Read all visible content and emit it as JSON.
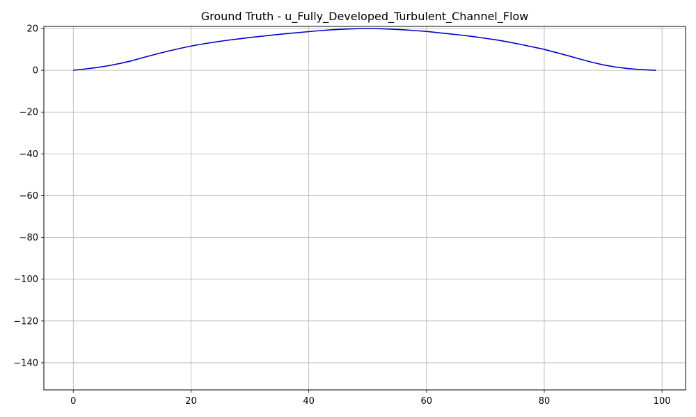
{
  "chart_data": {
    "type": "line",
    "title": "Ground Truth - u_Fully_Developed_Turbulent_Channel_Flow",
    "xlabel": "",
    "ylabel": "",
    "xlim": [
      -5,
      104
    ],
    "ylim": [
      -153,
      21
    ],
    "xticks": [
      0,
      20,
      40,
      60,
      80,
      100
    ],
    "yticks": [
      20,
      0,
      -20,
      -40,
      -60,
      -80,
      -100,
      -120,
      -140
    ],
    "xtick_labels": [
      "0",
      "20",
      "40",
      "60",
      "80",
      "100"
    ],
    "ytick_labels": [
      "20",
      "0",
      "−20",
      "−40",
      "−60",
      "−80",
      "−100",
      "−120",
      "−140"
    ],
    "grid": true,
    "series": [
      {
        "color": "#0000cc",
        "x": [
          0,
          2,
          4,
          6,
          8,
          10,
          12,
          14,
          16,
          18,
          20,
          22,
          24,
          26,
          28,
          30,
          32,
          34,
          36,
          38,
          40,
          42,
          44,
          46,
          48,
          50,
          52,
          54,
          56,
          58,
          60,
          62,
          64,
          66,
          68,
          70,
          72,
          74,
          76,
          78,
          80,
          82,
          84,
          86,
          88,
          90,
          92,
          94,
          96,
          98,
          99
        ],
        "y": [
          0,
          0.6,
          1.3,
          2.2,
          3.3,
          4.6,
          6.2,
          7.7,
          9.1,
          10.4,
          11.6,
          12.6,
          13.5,
          14.3,
          15.0,
          15.7,
          16.3,
          16.9,
          17.5,
          18.0,
          18.5,
          19.0,
          19.4,
          19.7,
          19.9,
          20.0,
          19.9,
          19.7,
          19.4,
          19.0,
          18.6,
          18.0,
          17.4,
          16.8,
          16.1,
          15.3,
          14.5,
          13.5,
          12.4,
          11.2,
          10.0,
          8.5,
          7.0,
          5.4,
          3.9,
          2.6,
          1.6,
          0.9,
          0.4,
          0.1,
          0
        ]
      }
    ]
  }
}
